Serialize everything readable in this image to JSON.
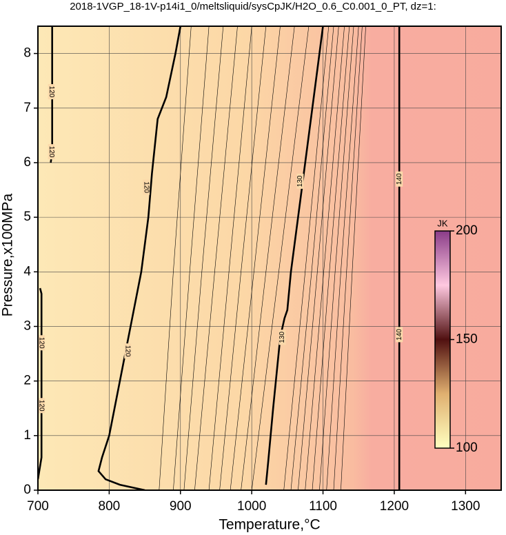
{
  "chart_data": {
    "type": "contour",
    "title": "2018-1VGP_18-1V-p14i1_0/meltsliquid/sysCpJK/H2O_0.6_C0.001_0_PT, dz=1:",
    "xlabel": "Temperature,°C",
    "ylabel": "Pressure,x100MPa",
    "xlim": [
      700,
      1350
    ],
    "ylim": [
      0,
      8.5
    ],
    "xticks": [
      700,
      800,
      900,
      1000,
      1100,
      1200,
      1300
    ],
    "yticks": [
      0,
      1,
      2,
      3,
      4,
      5,
      6,
      7,
      8
    ],
    "grid": true,
    "contours": [
      {
        "level": 120,
        "bold": true,
        "x": [
          850,
          815,
          795,
          785,
          790,
          800,
          815,
          830,
          845,
          855,
          860,
          868,
          880,
          893,
          900
        ],
        "y": [
          0,
          0.1,
          0.2,
          0.35,
          0.6,
          1,
          2,
          3,
          4,
          5,
          5.8,
          6.8,
          7.2,
          8,
          8.5
        ]
      },
      {
        "level": 120,
        "bold": true,
        "x": [
          700,
          705,
          705,
          703
        ],
        "y": [
          0.2,
          0.6,
          3.6,
          3.7
        ]
      },
      {
        "level": 120,
        "bold": true,
        "x": [
          718,
          720,
          720
        ],
        "y": [
          6.0,
          6.2,
          8.5
        ]
      },
      {
        "level": 130,
        "bold": true,
        "x": [
          1020,
          1023,
          1030,
          1040,
          1046,
          1050,
          1055,
          1065,
          1080,
          1095,
          1100
        ],
        "y": [
          0.1,
          0.5,
          1.5,
          2.8,
          3.15,
          3.3,
          4,
          5,
          6.5,
          8,
          8.5
        ]
      },
      {
        "level": 140,
        "bold": true,
        "x": [
          1207,
          1207
        ],
        "y": [
          0,
          8.5
        ]
      },
      {
        "level": 121,
        "bold": false,
        "x": [
          870,
          890,
          915
        ],
        "y": [
          0,
          4,
          8.5
        ]
      },
      {
        "level": 122,
        "bold": false,
        "x": [
          890,
          913,
          940
        ],
        "y": [
          0,
          4,
          8.5
        ]
      },
      {
        "level": 123,
        "bold": false,
        "x": [
          905,
          930,
          960
        ],
        "y": [
          0,
          4,
          8.5
        ]
      },
      {
        "level": 124,
        "bold": false,
        "x": [
          920,
          948,
          980
        ],
        "y": [
          0,
          4,
          8.5
        ]
      },
      {
        "level": 125,
        "bold": false,
        "x": [
          940,
          968,
          1000
        ],
        "y": [
          0,
          4,
          8.5
        ]
      },
      {
        "level": 126,
        "bold": false,
        "x": [
          955,
          985,
          1020
        ],
        "y": [
          0,
          4,
          8.5
        ]
      },
      {
        "level": 127,
        "bold": false,
        "x": [
          970,
          1003,
          1040
        ],
        "y": [
          0,
          4,
          8.5
        ]
      },
      {
        "level": 128,
        "bold": false,
        "x": [
          985,
          1020,
          1060
        ],
        "y": [
          0,
          4,
          8.5
        ]
      },
      {
        "level": 129,
        "bold": false,
        "x": [
          1000,
          1038,
          1080
        ],
        "y": [
          0,
          4,
          8.5
        ]
      },
      {
        "level": 131,
        "bold": false,
        "x": [
          1045,
          1075,
          1108
        ],
        "y": [
          0,
          4,
          8.5
        ]
      },
      {
        "level": 132,
        "bold": false,
        "x": [
          1055,
          1084,
          1115
        ],
        "y": [
          0,
          4,
          8.5
        ]
      },
      {
        "level": 133,
        "bold": false,
        "x": [
          1065,
          1092,
          1122
        ],
        "y": [
          0,
          4,
          8.5
        ]
      },
      {
        "level": 134,
        "bold": false,
        "x": [
          1075,
          1101,
          1130
        ],
        "y": [
          0,
          4,
          8.5
        ]
      },
      {
        "level": 135,
        "bold": false,
        "x": [
          1085,
          1109,
          1137
        ],
        "y": [
          0,
          4,
          8.5
        ]
      },
      {
        "level": 136,
        "bold": false,
        "x": [
          1095,
          1117,
          1143
        ],
        "y": [
          0,
          4,
          8.5
        ]
      },
      {
        "level": 137,
        "bold": false,
        "x": [
          1105,
          1125,
          1150
        ],
        "y": [
          0,
          4,
          8.5
        ]
      },
      {
        "level": 138,
        "bold": false,
        "x": [
          1115,
          1133,
          1155
        ],
        "y": [
          0,
          4,
          8.5
        ]
      },
      {
        "level": 139,
        "bold": false,
        "x": [
          1125,
          1141,
          1160
        ],
        "y": [
          0,
          4,
          8.5
        ]
      }
    ],
    "contour_labels": [
      {
        "level": 120,
        "x": 719,
        "y": 7.3
      },
      {
        "level": 120,
        "x": 719,
        "y": 6.2
      },
      {
        "level": 120,
        "x": 705,
        "y": 2.7
      },
      {
        "level": 120,
        "x": 705,
        "y": 1.55
      },
      {
        "level": 120,
        "x": 826,
        "y": 2.55
      },
      {
        "level": 120,
        "x": 852,
        "y": 5.55
      },
      {
        "level": 130,
        "x": 1068,
        "y": 5.66
      },
      {
        "level": 130,
        "x": 1043,
        "y": 2.8
      },
      {
        "level": 140,
        "x": 1207,
        "y": 5.7
      },
      {
        "level": 140,
        "x": 1207,
        "y": 2.85
      }
    ],
    "colorbar": {
      "label": "JK",
      "lim": [
        100,
        200
      ],
      "ticks": [
        100,
        150,
        200
      ]
    }
  }
}
